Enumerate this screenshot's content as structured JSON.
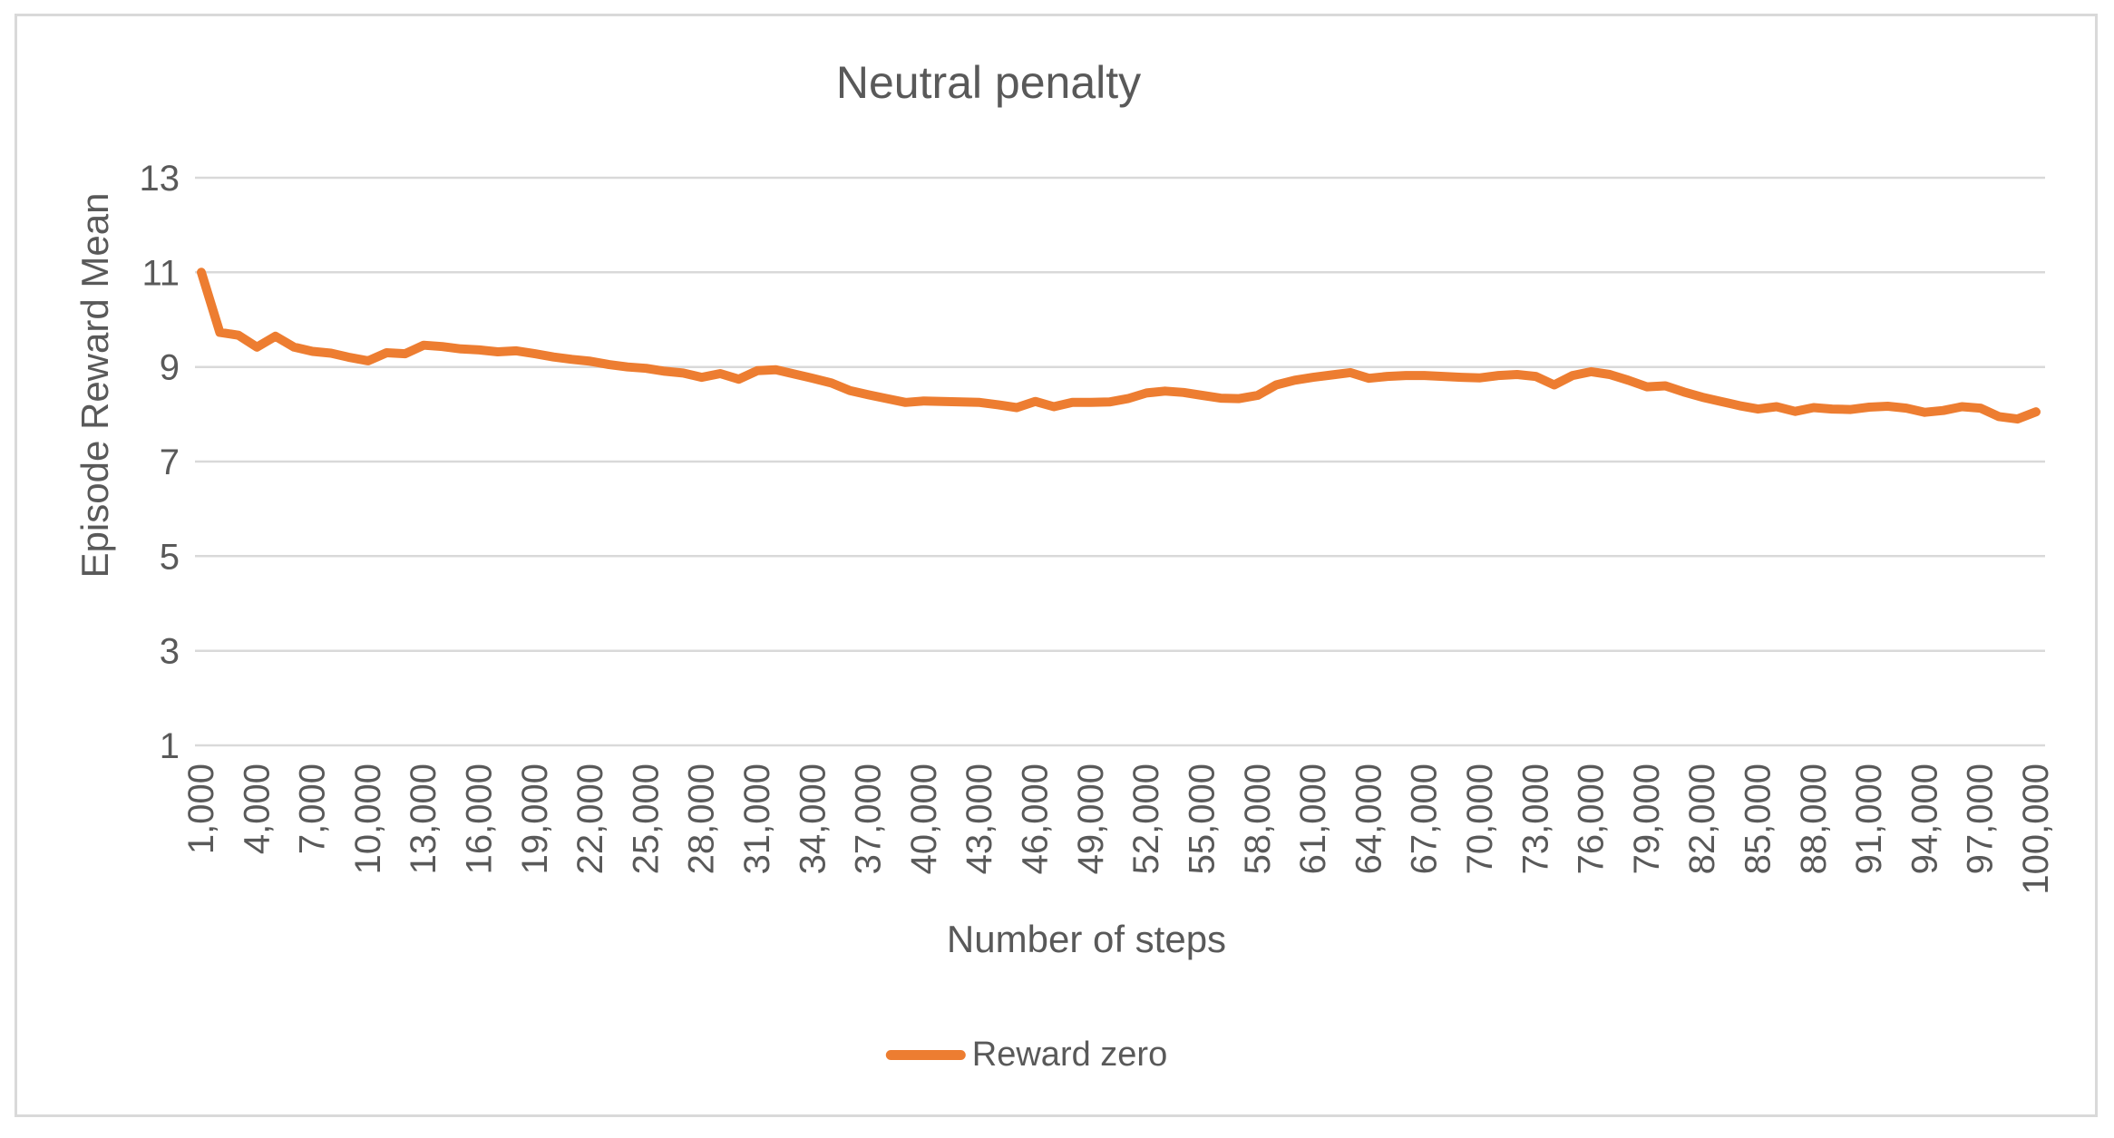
{
  "window": {
    "background": "#FFFFFF",
    "border_color": "#D9D9D9"
  },
  "chart_data": {
    "type": "line",
    "title": "Neutral penalty",
    "xlabel": "Number of steps",
    "ylabel": "Episode Reward Mean",
    "grid": true,
    "legend": {
      "position": "bottom",
      "entries": [
        {
          "label": "Reward zero",
          "color": "#ED7D31"
        }
      ]
    },
    "styles": {
      "text_color": "#595959",
      "grid_color": "#D9D9D9",
      "line_width": 10,
      "tick_font_size": 40
    },
    "ylim": [
      1,
      13
    ],
    "y_ticks": [
      13,
      11,
      9,
      7,
      5,
      3,
      1
    ],
    "x_start": 1000,
    "x_step": 1000,
    "x_tick_start": 1000,
    "x_tick_step": 3000,
    "x_tick_labels": [
      "1,000",
      "4,000",
      "7,000",
      "10,000",
      "13,000",
      "16,000",
      "19,000",
      "22,000",
      "25,000",
      "28,000",
      "31,000",
      "34,000",
      "37,000",
      "40,000",
      "43,000",
      "46,000",
      "49,000",
      "52,000",
      "55,000",
      "58,000",
      "61,000",
      "64,000",
      "67,000",
      "70,000",
      "73,000",
      "76,000",
      "79,000",
      "82,000",
      "85,000",
      "88,000",
      "91,000",
      "94,000",
      "97,000",
      "100,000"
    ],
    "series": [
      {
        "name": "Reward zero",
        "color": "#ED7D31",
        "x_range": [
          1000,
          100000
        ],
        "values": [
          11.0,
          9.73,
          9.67,
          9.42,
          9.65,
          9.42,
          9.33,
          9.29,
          9.2,
          9.13,
          9.3,
          9.28,
          9.46,
          9.43,
          9.38,
          9.36,
          9.32,
          9.34,
          9.28,
          9.21,
          9.16,
          9.12,
          9.05,
          9.0,
          8.97,
          8.91,
          8.87,
          8.78,
          8.86,
          8.74,
          8.92,
          8.94,
          8.85,
          8.76,
          8.66,
          8.5,
          8.41,
          8.33,
          8.25,
          8.28,
          8.27,
          8.26,
          8.25,
          8.2,
          8.14,
          8.27,
          8.16,
          8.25,
          8.25,
          8.26,
          8.33,
          8.45,
          8.49,
          8.46,
          8.4,
          8.34,
          8.33,
          8.4,
          8.62,
          8.72,
          8.78,
          8.83,
          8.88,
          8.76,
          8.8,
          8.82,
          8.82,
          8.8,
          8.78,
          8.77,
          8.82,
          8.84,
          8.8,
          8.62,
          8.82,
          8.9,
          8.84,
          8.72,
          8.58,
          8.6,
          8.47,
          8.36,
          8.27,
          8.18,
          8.11,
          8.16,
          8.06,
          8.14,
          8.11,
          8.1,
          8.15,
          8.17,
          8.13,
          8.04,
          8.08,
          8.16,
          8.13,
          7.95,
          7.9,
          8.05
        ]
      }
    ]
  }
}
